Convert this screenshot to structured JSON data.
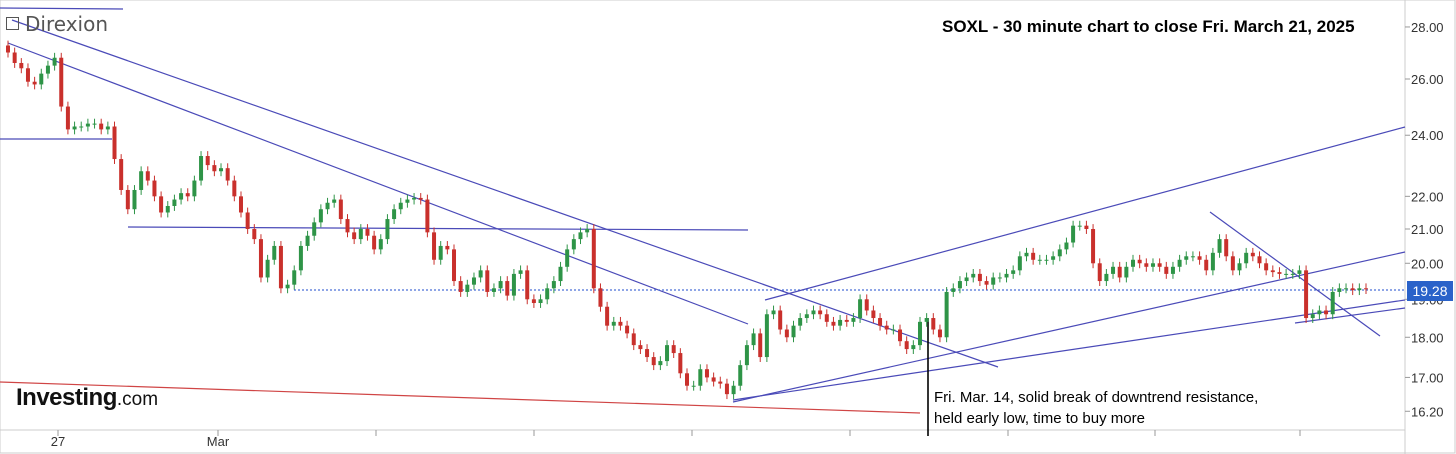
{
  "brand": "Direxion",
  "logo": {
    "name": "Investing",
    "suffix": ".com"
  },
  "colors": {
    "up": "#2e9447",
    "down": "#c9302c",
    "trend": "#4a4ab8",
    "support": "#d04545",
    "price_line": "#4a6fd8",
    "tag": "#2a62c9"
  },
  "chart_data": {
    "type": "candlestick",
    "title": "SOXL - 30 minute chart to close Fri. March 21, 2025",
    "ylim": [
      16.0,
      28.4
    ],
    "y_scale": "log",
    "y_ticks": [
      "28.00",
      "26.00",
      "24.00",
      "22.00",
      "21.00",
      "20.00",
      "19.00",
      "18.00",
      "17.00",
      "16.20"
    ],
    "x_ticks": [
      "27",
      "Mar",
      "",
      "",
      "",
      "",
      "",
      "",
      "",
      ""
    ],
    "last_price": "19.28",
    "annotations": [
      "Fri. Mar. 14, solid break of downtrend resistance,",
      "held early low, time to buy more"
    ],
    "closes": [
      27.0,
      26.6,
      26.4,
      25.9,
      25.8,
      26.2,
      26.5,
      26.8,
      25.0,
      24.2,
      24.3,
      24.3,
      24.4,
      24.4,
      24.2,
      24.3,
      23.2,
      22.2,
      21.6,
      22.2,
      22.8,
      22.5,
      22.0,
      21.5,
      21.7,
      21.9,
      22.1,
      22.0,
      22.5,
      23.3,
      23.0,
      22.8,
      22.9,
      22.5,
      22.0,
      21.5,
      21.0,
      20.7,
      19.6,
      20.1,
      20.5,
      19.3,
      19.4,
      19.8,
      20.5,
      20.8,
      21.2,
      21.6,
      21.8,
      21.9,
      21.3,
      20.9,
      20.7,
      21.0,
      20.8,
      20.4,
      20.7,
      21.3,
      21.6,
      21.8,
      21.9,
      21.95,
      21.9,
      20.9,
      20.1,
      20.5,
      20.4,
      19.5,
      19.2,
      19.4,
      19.6,
      19.8,
      19.2,
      19.3,
      19.5,
      19.1,
      19.7,
      19.8,
      19.0,
      18.9,
      19.0,
      19.3,
      19.5,
      19.9,
      20.4,
      20.7,
      20.9,
      21.0,
      19.3,
      18.8,
      18.3,
      18.4,
      18.3,
      18.1,
      17.8,
      17.7,
      17.5,
      17.3,
      17.4,
      17.8,
      17.6,
      17.1,
      16.8,
      16.8,
      17.2,
      17.0,
      16.9,
      16.85,
      16.6,
      16.8,
      17.3,
      17.8,
      18.1,
      17.5,
      18.6,
      18.7,
      18.2,
      18.0,
      18.3,
      18.5,
      18.6,
      18.7,
      18.6,
      18.4,
      18.3,
      18.45,
      18.4,
      18.5,
      19.0,
      18.7,
      18.5,
      18.3,
      18.2,
      18.2,
      17.9,
      17.7,
      17.8,
      18.4,
      18.5,
      18.2,
      18.0,
      19.2,
      19.3,
      19.5,
      19.6,
      19.7,
      19.5,
      19.4,
      19.6,
      19.6,
      19.7,
      19.8,
      20.2,
      20.3,
      20.1,
      20.1,
      20.1,
      20.2,
      20.4,
      20.6,
      21.1,
      21.1,
      21.0,
      20.0,
      19.5,
      19.7,
      19.9,
      19.6,
      19.9,
      20.1,
      20.0,
      19.9,
      20.0,
      19.9,
      19.7,
      19.9,
      20.1,
      20.2,
      20.2,
      20.1,
      19.8,
      20.3,
      20.7,
      20.2,
      19.8,
      20.0,
      20.3,
      20.2,
      20.0,
      19.8,
      19.75,
      19.7,
      19.7,
      19.7,
      19.8,
      18.5,
      18.6,
      18.7,
      18.6,
      19.2,
      19.3,
      19.3,
      19.25,
      19.3,
      19.28
    ]
  }
}
